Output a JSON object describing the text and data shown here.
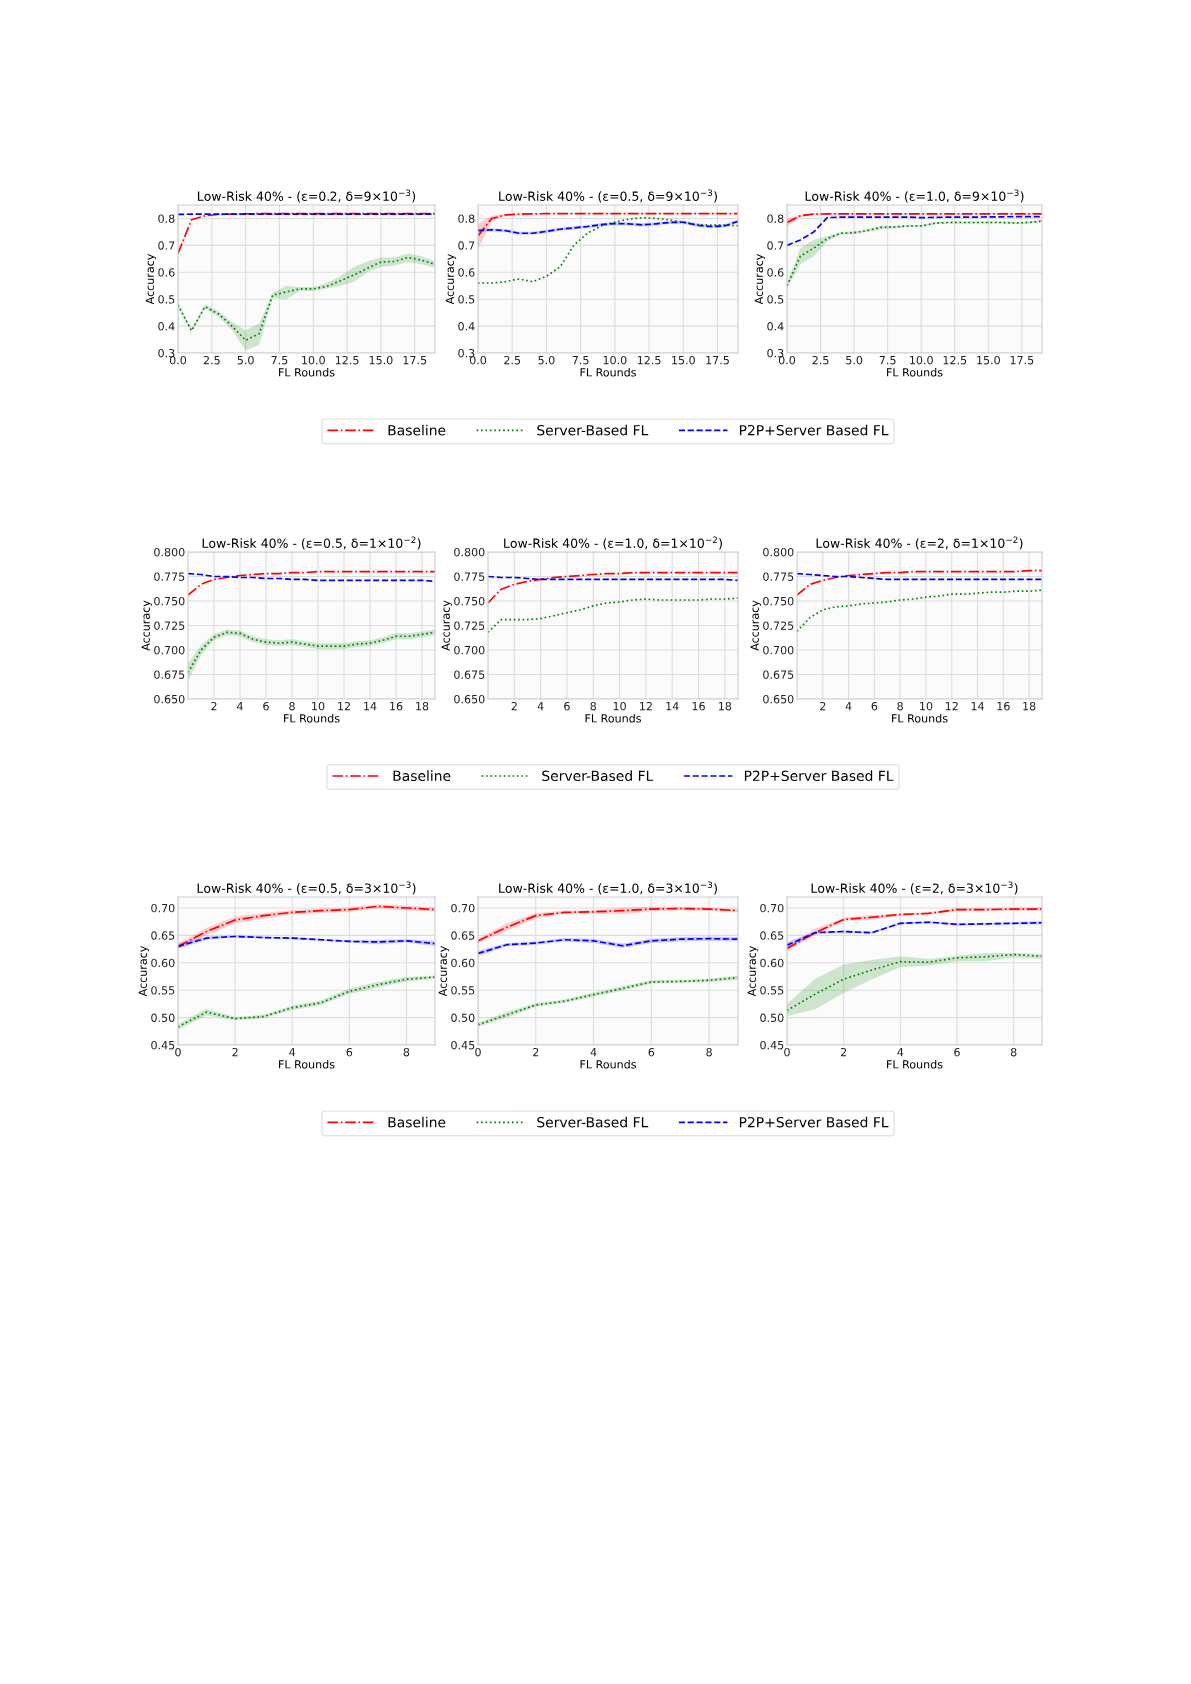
{
  "chart_data": [
    {
      "type": "line",
      "title": "Low-Risk 40% - (ε=0.2, δ=9×10$^{−3}$)",
      "xlabel": "FL Rounds",
      "ylabel": "Accuracy",
      "grid": true,
      "x": [
        0,
        1,
        2,
        3,
        4,
        5,
        6,
        7,
        8,
        9,
        10,
        11,
        12,
        13,
        14,
        15,
        16,
        17,
        18,
        19
      ],
      "xlim": [
        0,
        19
      ],
      "ylim": [
        0.3,
        0.85
      ],
      "xticks": [
        {
          "value": 0,
          "label": "0.0"
        },
        {
          "value": 2.5,
          "label": "2.5"
        },
        {
          "value": 5,
          "label": "5.0"
        },
        {
          "value": 7.5,
          "label": "7.5"
        },
        {
          "value": 10,
          "label": "10.0"
        },
        {
          "value": 12.5,
          "label": "12.5"
        },
        {
          "value": 15,
          "label": "15.0"
        },
        {
          "value": 17.5,
          "label": "17.5"
        }
      ],
      "yticks": [
        0.3,
        0.4,
        0.5,
        0.6,
        0.7,
        0.8
      ],
      "series": [
        {
          "color": "#ff0000",
          "line_style": "dashdot",
          "values": [
            0.67,
            0.795,
            0.81,
            0.815,
            0.816,
            0.817,
            0.818,
            0.818,
            0.818,
            0.818,
            0.818,
            0.818,
            0.818,
            0.818,
            0.818,
            0.818,
            0.818,
            0.818,
            0.818,
            0.818
          ]
        },
        {
          "color": "#008000",
          "line_style": "dotted",
          "values": [
            0.478,
            0.383,
            0.472,
            0.445,
            0.4,
            0.347,
            0.372,
            0.515,
            0.527,
            0.538,
            0.538,
            0.548,
            0.568,
            0.59,
            0.615,
            0.638,
            0.64,
            0.655,
            0.645,
            0.63
          ],
          "lower": [
            0.47,
            0.375,
            0.465,
            0.435,
            0.385,
            0.31,
            0.33,
            0.505,
            0.5,
            0.53,
            0.53,
            0.54,
            0.55,
            0.565,
            0.6,
            0.62,
            0.625,
            0.638,
            0.63,
            0.618
          ],
          "upper": [
            0.485,
            0.39,
            0.48,
            0.455,
            0.415,
            0.385,
            0.41,
            0.525,
            0.55,
            0.545,
            0.545,
            0.56,
            0.585,
            0.62,
            0.64,
            0.655,
            0.655,
            0.67,
            0.66,
            0.64
          ]
        },
        {
          "color": "#0000ff",
          "line_style": "dashed",
          "values": [
            0.815,
            0.816,
            0.816,
            0.816,
            0.816,
            0.816,
            0.816,
            0.816,
            0.816,
            0.816,
            0.816,
            0.816,
            0.816,
            0.816,
            0.816,
            0.816,
            0.816,
            0.816,
            0.816,
            0.816
          ]
        }
      ]
    },
    {
      "type": "line",
      "title": "Low-Risk 40% - (ε=0.5, δ=9×10$^{−3}$)",
      "xlabel": "FL Rounds",
      "ylabel": "Accuracy",
      "grid": true,
      "legend": "bottom",
      "x": [
        0,
        1,
        2,
        3,
        4,
        5,
        6,
        7,
        8,
        9,
        10,
        11,
        12,
        13,
        14,
        15,
        16,
        17,
        18,
        19
      ],
      "xlim": [
        0,
        19
      ],
      "ylim": [
        0.3,
        0.85
      ],
      "xticks": [
        {
          "value": 0,
          "label": "0.0"
        },
        {
          "value": 2.5,
          "label": "2.5"
        },
        {
          "value": 5,
          "label": "5.0"
        },
        {
          "value": 7.5,
          "label": "7.5"
        },
        {
          "value": 10,
          "label": "10.0"
        },
        {
          "value": 12.5,
          "label": "12.5"
        },
        {
          "value": 15,
          "label": "15.0"
        },
        {
          "value": 17.5,
          "label": "17.5"
        }
      ],
      "yticks": [
        0.3,
        0.4,
        0.5,
        0.6,
        0.7,
        0.8
      ],
      "series": [
        {
          "name": "Baseline",
          "color": "#ff0000",
          "line_style": "dashdot",
          "values": [
            0.735,
            0.8,
            0.813,
            0.816,
            0.817,
            0.818,
            0.818,
            0.818,
            0.818,
            0.818,
            0.818,
            0.818,
            0.818,
            0.818,
            0.818,
            0.818,
            0.818,
            0.818,
            0.818,
            0.818
          ],
          "lower": [
            0.685,
            0.79,
            0.81,
            0.815,
            0.816,
            0.817,
            0.817,
            0.817,
            0.817,
            0.817,
            0.817,
            0.817,
            0.817,
            0.817,
            0.817,
            0.817,
            0.817,
            0.817,
            0.817,
            0.817
          ],
          "upper": [
            0.78,
            0.81,
            0.816,
            0.818,
            0.819,
            0.82,
            0.82,
            0.82,
            0.82,
            0.82,
            0.82,
            0.82,
            0.82,
            0.82,
            0.82,
            0.82,
            0.82,
            0.82,
            0.82,
            0.82
          ]
        },
        {
          "name": "Server-Based FL",
          "color": "#008000",
          "line_style": "dotted",
          "values": [
            0.56,
            0.56,
            0.565,
            0.575,
            0.565,
            0.585,
            0.62,
            0.7,
            0.745,
            0.772,
            0.787,
            0.797,
            0.803,
            0.8,
            0.795,
            0.786,
            0.778,
            0.775,
            0.775,
            0.773
          ]
        },
        {
          "name": "P2P+Server Based FL",
          "color": "#0000ff",
          "line_style": "dashed",
          "values": [
            0.755,
            0.758,
            0.755,
            0.745,
            0.745,
            0.752,
            0.76,
            0.765,
            0.77,
            0.777,
            0.781,
            0.78,
            0.776,
            0.78,
            0.785,
            0.786,
            0.775,
            0.77,
            0.772,
            0.789
          ],
          "lower": [
            0.749,
            0.752,
            0.749,
            0.739,
            0.739,
            0.746,
            0.754,
            0.759,
            0.764,
            0.771,
            0.775,
            0.774,
            0.77,
            0.774,
            0.779,
            0.78,
            0.769,
            0.764,
            0.766,
            0.783
          ],
          "upper": [
            0.761,
            0.764,
            0.761,
            0.751,
            0.751,
            0.758,
            0.766,
            0.771,
            0.776,
            0.783,
            0.787,
            0.786,
            0.782,
            0.786,
            0.791,
            0.792,
            0.781,
            0.776,
            0.778,
            0.795
          ]
        }
      ]
    },
    {
      "type": "line",
      "title": "Low-Risk 40% - (ε=1.0, δ=9×10$^{−3}$)",
      "xlabel": "FL Rounds",
      "ylabel": "Accuracy",
      "grid": true,
      "x": [
        0,
        1,
        2,
        3,
        4,
        5,
        6,
        7,
        8,
        9,
        10,
        11,
        12,
        13,
        14,
        15,
        16,
        17,
        18,
        19
      ],
      "xlim": [
        0,
        19
      ],
      "ylim": [
        0.3,
        0.85
      ],
      "xticks": [
        {
          "value": 0,
          "label": "0.0"
        },
        {
          "value": 2.5,
          "label": "2.5"
        },
        {
          "value": 5,
          "label": "5.0"
        },
        {
          "value": 7.5,
          "label": "7.5"
        },
        {
          "value": 10,
          "label": "10.0"
        },
        {
          "value": 12.5,
          "label": "12.5"
        },
        {
          "value": 15,
          "label": "15.0"
        },
        {
          "value": 17.5,
          "label": "17.5"
        }
      ],
      "yticks": [
        0.3,
        0.4,
        0.5,
        0.6,
        0.7,
        0.8
      ],
      "series": [
        {
          "color": "#ff0000",
          "line_style": "dashdot",
          "values": [
            0.785,
            0.81,
            0.816,
            0.817,
            0.817,
            0.817,
            0.817,
            0.817,
            0.817,
            0.817,
            0.817,
            0.817,
            0.817,
            0.817,
            0.817,
            0.817,
            0.817,
            0.817,
            0.817,
            0.817
          ],
          "lower": [
            0.77,
            0.805,
            0.814,
            0.815,
            0.815,
            0.815,
            0.815,
            0.815,
            0.815,
            0.815,
            0.815,
            0.815,
            0.815,
            0.815,
            0.815,
            0.815,
            0.815,
            0.815,
            0.815,
            0.815
          ],
          "upper": [
            0.8,
            0.815,
            0.818,
            0.819,
            0.819,
            0.819,
            0.819,
            0.819,
            0.819,
            0.819,
            0.819,
            0.819,
            0.819,
            0.819,
            0.819,
            0.819,
            0.819,
            0.819,
            0.819,
            0.819
          ]
        },
        {
          "color": "#008000",
          "line_style": "dotted",
          "values": [
            0.55,
            0.66,
            0.69,
            0.725,
            0.745,
            0.747,
            0.755,
            0.767,
            0.768,
            0.772,
            0.772,
            0.782,
            0.785,
            0.785,
            0.785,
            0.785,
            0.785,
            0.783,
            0.785,
            0.79
          ],
          "lower": [
            0.54,
            0.63,
            0.66,
            0.715,
            0.74,
            0.742,
            0.75,
            0.76,
            0.763,
            0.768,
            0.768,
            0.778,
            0.781,
            0.781,
            0.781,
            0.781,
            0.781,
            0.779,
            0.781,
            0.786
          ],
          "upper": [
            0.56,
            0.69,
            0.72,
            0.735,
            0.75,
            0.752,
            0.76,
            0.774,
            0.773,
            0.776,
            0.776,
            0.786,
            0.789,
            0.789,
            0.789,
            0.789,
            0.789,
            0.787,
            0.789,
            0.794
          ]
        },
        {
          "color": "#0000ff",
          "line_style": "dashed",
          "values": [
            0.7,
            0.72,
            0.75,
            0.803,
            0.805,
            0.805,
            0.805,
            0.805,
            0.805,
            0.805,
            0.803,
            0.804,
            0.805,
            0.805,
            0.805,
            0.806,
            0.806,
            0.807,
            0.807,
            0.807
          ]
        }
      ]
    },
    {
      "type": "line",
      "title": "Low-Risk 40% - (ε=0.5, δ=1×10$^{−2}$)",
      "xlabel": "FL Rounds",
      "ylabel": "Accuracy",
      "grid": true,
      "x": [
        0,
        1,
        2,
        3,
        4,
        5,
        6,
        7,
        8,
        9,
        10,
        11,
        12,
        13,
        14,
        15,
        16,
        17,
        18,
        19
      ],
      "xlim": [
        0,
        19
      ],
      "ylim": [
        0.65,
        0.8
      ],
      "xticks": [
        2,
        4,
        6,
        8,
        10,
        12,
        14,
        16,
        18
      ],
      "yticks": [
        {
          "value": 0.65,
          "label": "0.650"
        },
        {
          "value": 0.675,
          "label": "0.675"
        },
        {
          "value": 0.7,
          "label": "0.700"
        },
        {
          "value": 0.725,
          "label": "0.725"
        },
        {
          "value": 0.75,
          "label": "0.750"
        },
        {
          "value": 0.775,
          "label": "0.775"
        },
        {
          "value": 0.8,
          "label": "0.800"
        }
      ],
      "series": [
        {
          "color": "#ff0000",
          "line_style": "dashdot",
          "values": [
            0.756,
            0.767,
            0.772,
            0.774,
            0.776,
            0.777,
            0.778,
            0.778,
            0.779,
            0.779,
            0.78,
            0.78,
            0.78,
            0.78,
            0.78,
            0.78,
            0.78,
            0.78,
            0.78,
            0.78
          ]
        },
        {
          "color": "#008000",
          "line_style": "dotted",
          "values": [
            0.677,
            0.7,
            0.713,
            0.718,
            0.717,
            0.711,
            0.708,
            0.707,
            0.708,
            0.706,
            0.704,
            0.704,
            0.704,
            0.706,
            0.707,
            0.71,
            0.714,
            0.714,
            0.716,
            0.718
          ],
          "lower": [
            0.668,
            0.695,
            0.71,
            0.715,
            0.714,
            0.708,
            0.705,
            0.704,
            0.705,
            0.703,
            0.701,
            0.701,
            0.701,
            0.703,
            0.704,
            0.707,
            0.711,
            0.711,
            0.713,
            0.715
          ],
          "upper": [
            0.686,
            0.705,
            0.716,
            0.721,
            0.72,
            0.714,
            0.711,
            0.71,
            0.711,
            0.709,
            0.707,
            0.707,
            0.707,
            0.709,
            0.71,
            0.713,
            0.717,
            0.717,
            0.719,
            0.721
          ]
        },
        {
          "color": "#0000ff",
          "line_style": "dashed",
          "values": [
            0.778,
            0.777,
            0.775,
            0.775,
            0.774,
            0.774,
            0.773,
            0.773,
            0.772,
            0.772,
            0.771,
            0.771,
            0.771,
            0.771,
            0.771,
            0.771,
            0.771,
            0.771,
            0.771,
            0.77
          ]
        }
      ]
    },
    {
      "type": "line",
      "title": "Low-Risk 40% - (ε=1.0, δ=1×10$^{−2}$)",
      "xlabel": "FL Rounds",
      "ylabel": "Accuracy",
      "grid": true,
      "legend": "bottom",
      "x": [
        0,
        1,
        2,
        3,
        4,
        5,
        6,
        7,
        8,
        9,
        10,
        11,
        12,
        13,
        14,
        15,
        16,
        17,
        18,
        19
      ],
      "xlim": [
        0,
        19
      ],
      "ylim": [
        0.65,
        0.8
      ],
      "xticks": [
        2,
        4,
        6,
        8,
        10,
        12,
        14,
        16,
        18
      ],
      "yticks": [
        {
          "value": 0.65,
          "label": "0.650"
        },
        {
          "value": 0.675,
          "label": "0.675"
        },
        {
          "value": 0.7,
          "label": "0.700"
        },
        {
          "value": 0.725,
          "label": "0.725"
        },
        {
          "value": 0.75,
          "label": "0.750"
        },
        {
          "value": 0.775,
          "label": "0.775"
        },
        {
          "value": 0.8,
          "label": "0.800"
        }
      ],
      "series": [
        {
          "name": "Baseline",
          "color": "#ff0000",
          "line_style": "dashdot",
          "values": [
            0.748,
            0.762,
            0.767,
            0.77,
            0.772,
            0.774,
            0.775,
            0.776,
            0.777,
            0.778,
            0.778,
            0.779,
            0.779,
            0.779,
            0.779,
            0.779,
            0.779,
            0.779,
            0.779,
            0.779
          ]
        },
        {
          "name": "Server-Based FL",
          "color": "#008000",
          "line_style": "dotted",
          "values": [
            0.718,
            0.731,
            0.731,
            0.731,
            0.732,
            0.735,
            0.738,
            0.741,
            0.745,
            0.748,
            0.749,
            0.751,
            0.752,
            0.751,
            0.751,
            0.751,
            0.751,
            0.752,
            0.752,
            0.753
          ]
        },
        {
          "name": "P2P+Server Based FL",
          "color": "#0000ff",
          "line_style": "dashed",
          "values": [
            0.775,
            0.774,
            0.774,
            0.773,
            0.772,
            0.772,
            0.772,
            0.772,
            0.772,
            0.772,
            0.772,
            0.772,
            0.772,
            0.772,
            0.772,
            0.772,
            0.772,
            0.772,
            0.772,
            0.771
          ]
        }
      ]
    },
    {
      "type": "line",
      "title": "Low-Risk 40% - (ε=2, δ=1×10$^{−2}$)",
      "xlabel": "FL Rounds",
      "ylabel": "Accuracy",
      "grid": true,
      "x": [
        0,
        1,
        2,
        3,
        4,
        5,
        6,
        7,
        8,
        9,
        10,
        11,
        12,
        13,
        14,
        15,
        16,
        17,
        18,
        19
      ],
      "xlim": [
        0,
        19
      ],
      "ylim": [
        0.65,
        0.8
      ],
      "xticks": [
        2,
        4,
        6,
        8,
        10,
        12,
        14,
        16,
        18
      ],
      "yticks": [
        {
          "value": 0.65,
          "label": "0.650"
        },
        {
          "value": 0.675,
          "label": "0.675"
        },
        {
          "value": 0.7,
          "label": "0.700"
        },
        {
          "value": 0.725,
          "label": "0.725"
        },
        {
          "value": 0.75,
          "label": "0.750"
        },
        {
          "value": 0.775,
          "label": "0.775"
        },
        {
          "value": 0.8,
          "label": "0.800"
        }
      ],
      "series": [
        {
          "color": "#ff0000",
          "line_style": "dashdot",
          "values": [
            0.756,
            0.767,
            0.771,
            0.774,
            0.776,
            0.777,
            0.778,
            0.779,
            0.779,
            0.78,
            0.78,
            0.78,
            0.78,
            0.78,
            0.78,
            0.78,
            0.78,
            0.78,
            0.781,
            0.781
          ]
        },
        {
          "color": "#008000",
          "line_style": "dotted",
          "values": [
            0.719,
            0.733,
            0.741,
            0.744,
            0.745,
            0.747,
            0.748,
            0.749,
            0.751,
            0.752,
            0.754,
            0.755,
            0.757,
            0.757,
            0.758,
            0.759,
            0.759,
            0.76,
            0.76,
            0.761
          ]
        },
        {
          "color": "#0000ff",
          "line_style": "dashed",
          "values": [
            0.778,
            0.777,
            0.776,
            0.775,
            0.775,
            0.774,
            0.773,
            0.772,
            0.772,
            0.772,
            0.772,
            0.772,
            0.772,
            0.772,
            0.772,
            0.772,
            0.772,
            0.772,
            0.772,
            0.772
          ]
        }
      ]
    },
    {
      "type": "line",
      "title": "Low-Risk 40% - (ε=0.5, δ=3×10$^{−3}$)",
      "xlabel": "FL Rounds",
      "ylabel": "Accuracy",
      "grid": true,
      "x": [
        0,
        1,
        2,
        3,
        4,
        5,
        6,
        7,
        8,
        9
      ],
      "xlim": [
        0,
        9
      ],
      "ylim": [
        0.45,
        0.72
      ],
      "xticks": [
        0,
        2,
        4,
        6,
        8
      ],
      "yticks": [
        0.45,
        {
          "value": 0.5,
          "label": "0.50"
        },
        0.55,
        {
          "value": 0.6,
          "label": "0.60"
        },
        0.65,
        {
          "value": 0.7,
          "label": "0.70"
        }
      ],
      "series": [
        {
          "color": "#ff0000",
          "line_style": "dashdot",
          "values": [
            0.63,
            0.657,
            0.678,
            0.686,
            0.692,
            0.695,
            0.697,
            0.703,
            0.7,
            0.697
          ],
          "lower": [
            0.625,
            0.65,
            0.672,
            0.681,
            0.688,
            0.691,
            0.693,
            0.699,
            0.696,
            0.693
          ],
          "upper": [
            0.635,
            0.664,
            0.684,
            0.691,
            0.696,
            0.699,
            0.701,
            0.707,
            0.704,
            0.701
          ]
        },
        {
          "color": "#008000",
          "line_style": "dotted",
          "values": [
            0.483,
            0.51,
            0.498,
            0.502,
            0.518,
            0.527,
            0.548,
            0.56,
            0.57,
            0.574
          ],
          "lower": [
            0.478,
            0.504,
            0.495,
            0.499,
            0.514,
            0.523,
            0.543,
            0.555,
            0.566,
            0.571
          ],
          "upper": [
            0.488,
            0.516,
            0.501,
            0.505,
            0.522,
            0.531,
            0.553,
            0.565,
            0.574,
            0.577
          ]
        },
        {
          "color": "#0000ff",
          "line_style": "dashed",
          "values": [
            0.63,
            0.645,
            0.648,
            0.646,
            0.645,
            0.642,
            0.639,
            0.638,
            0.64,
            0.635
          ],
          "lower": [
            0.625,
            0.642,
            0.646,
            0.644,
            0.643,
            0.64,
            0.637,
            0.634,
            0.637,
            0.63
          ],
          "upper": [
            0.635,
            0.648,
            0.65,
            0.648,
            0.647,
            0.644,
            0.641,
            0.642,
            0.643,
            0.64
          ]
        }
      ]
    },
    {
      "type": "line",
      "title": "Low-Risk 40% - (ε=1.0, δ=3×10$^{−3}$)",
      "xlabel": "FL Rounds",
      "ylabel": "Accuracy",
      "grid": true,
      "legend": "bottom",
      "x": [
        0,
        1,
        2,
        3,
        4,
        5,
        6,
        7,
        8,
        9
      ],
      "xlim": [
        0,
        9
      ],
      "ylim": [
        0.45,
        0.72
      ],
      "xticks": [
        0,
        2,
        4,
        6,
        8
      ],
      "yticks": [
        0.45,
        {
          "value": 0.5,
          "label": "0.50"
        },
        0.55,
        {
          "value": 0.6,
          "label": "0.60"
        },
        0.65,
        {
          "value": 0.7,
          "label": "0.70"
        }
      ],
      "series": [
        {
          "name": "Baseline",
          "color": "#ff0000",
          "line_style": "dashdot",
          "values": [
            0.64,
            0.665,
            0.686,
            0.692,
            0.693,
            0.695,
            0.698,
            0.699,
            0.698,
            0.695
          ],
          "lower": [
            0.636,
            0.658,
            0.681,
            0.689,
            0.69,
            0.689,
            0.694,
            0.696,
            0.695,
            0.692
          ],
          "upper": [
            0.644,
            0.672,
            0.691,
            0.695,
            0.696,
            0.701,
            0.702,
            0.702,
            0.701,
            0.698
          ]
        },
        {
          "name": "Server-Based FL",
          "color": "#008000",
          "line_style": "dotted",
          "values": [
            0.487,
            0.505,
            0.523,
            0.53,
            0.542,
            0.553,
            0.565,
            0.566,
            0.568,
            0.573
          ],
          "lower": [
            0.483,
            0.5,
            0.52,
            0.527,
            0.538,
            0.549,
            0.562,
            0.563,
            0.565,
            0.569
          ],
          "upper": [
            0.491,
            0.51,
            0.526,
            0.533,
            0.546,
            0.557,
            0.568,
            0.569,
            0.571,
            0.577
          ]
        },
        {
          "name": "P2P+Server Based FL",
          "color": "#0000ff",
          "line_style": "dashed",
          "values": [
            0.617,
            0.633,
            0.636,
            0.642,
            0.64,
            0.631,
            0.64,
            0.643,
            0.644,
            0.643
          ],
          "lower": [
            0.612,
            0.63,
            0.633,
            0.639,
            0.636,
            0.627,
            0.636,
            0.639,
            0.64,
            0.639
          ],
          "upper": [
            0.622,
            0.636,
            0.639,
            0.645,
            0.644,
            0.635,
            0.644,
            0.647,
            0.648,
            0.647
          ]
        }
      ]
    },
    {
      "type": "line",
      "title": "Low-Risk 40% - (ε=2, δ=3×10$^{−3}$)",
      "xlabel": "FL Rounds",
      "ylabel": "Accuracy",
      "grid": true,
      "x": [
        0,
        1,
        2,
        3,
        4,
        5,
        6,
        7,
        8,
        9
      ],
      "xlim": [
        0,
        9
      ],
      "ylim": [
        0.45,
        0.72
      ],
      "xticks": [
        0,
        2,
        4,
        6,
        8
      ],
      "yticks": [
        0.45,
        {
          "value": 0.5,
          "label": "0.50"
        },
        0.55,
        {
          "value": 0.6,
          "label": "0.60"
        },
        0.65,
        {
          "value": 0.7,
          "label": "0.70"
        }
      ],
      "series": [
        {
          "color": "#ff0000",
          "line_style": "dashdot",
          "values": [
            0.626,
            0.655,
            0.679,
            0.683,
            0.688,
            0.69,
            0.697,
            0.697,
            0.698,
            0.698
          ],
          "lower": [
            0.622,
            0.65,
            0.676,
            0.679,
            0.686,
            0.688,
            0.694,
            0.694,
            0.695,
            0.695
          ],
          "upper": [
            0.63,
            0.662,
            0.682,
            0.687,
            0.69,
            0.692,
            0.7,
            0.7,
            0.701,
            0.701
          ]
        },
        {
          "color": "#008000",
          "line_style": "dotted",
          "values": [
            0.513,
            0.543,
            0.57,
            0.587,
            0.602,
            0.601,
            0.609,
            0.611,
            0.615,
            0.612
          ],
          "lower": [
            0.503,
            0.515,
            0.545,
            0.57,
            0.592,
            0.595,
            0.603,
            0.603,
            0.61,
            0.607
          ],
          "upper": [
            0.525,
            0.571,
            0.597,
            0.605,
            0.612,
            0.607,
            0.613,
            0.618,
            0.618,
            0.616
          ]
        },
        {
          "color": "#0000ff",
          "line_style": "dashed",
          "values": [
            0.632,
            0.655,
            0.657,
            0.655,
            0.672,
            0.674,
            0.67,
            0.671,
            0.672,
            0.673
          ],
          "lower": [
            0.626,
            0.653,
            0.655,
            0.653,
            0.67,
            0.672,
            0.668,
            0.669,
            0.67,
            0.67
          ],
          "upper": [
            0.638,
            0.657,
            0.659,
            0.657,
            0.674,
            0.676,
            0.672,
            0.673,
            0.674,
            0.676
          ]
        }
      ]
    }
  ]
}
